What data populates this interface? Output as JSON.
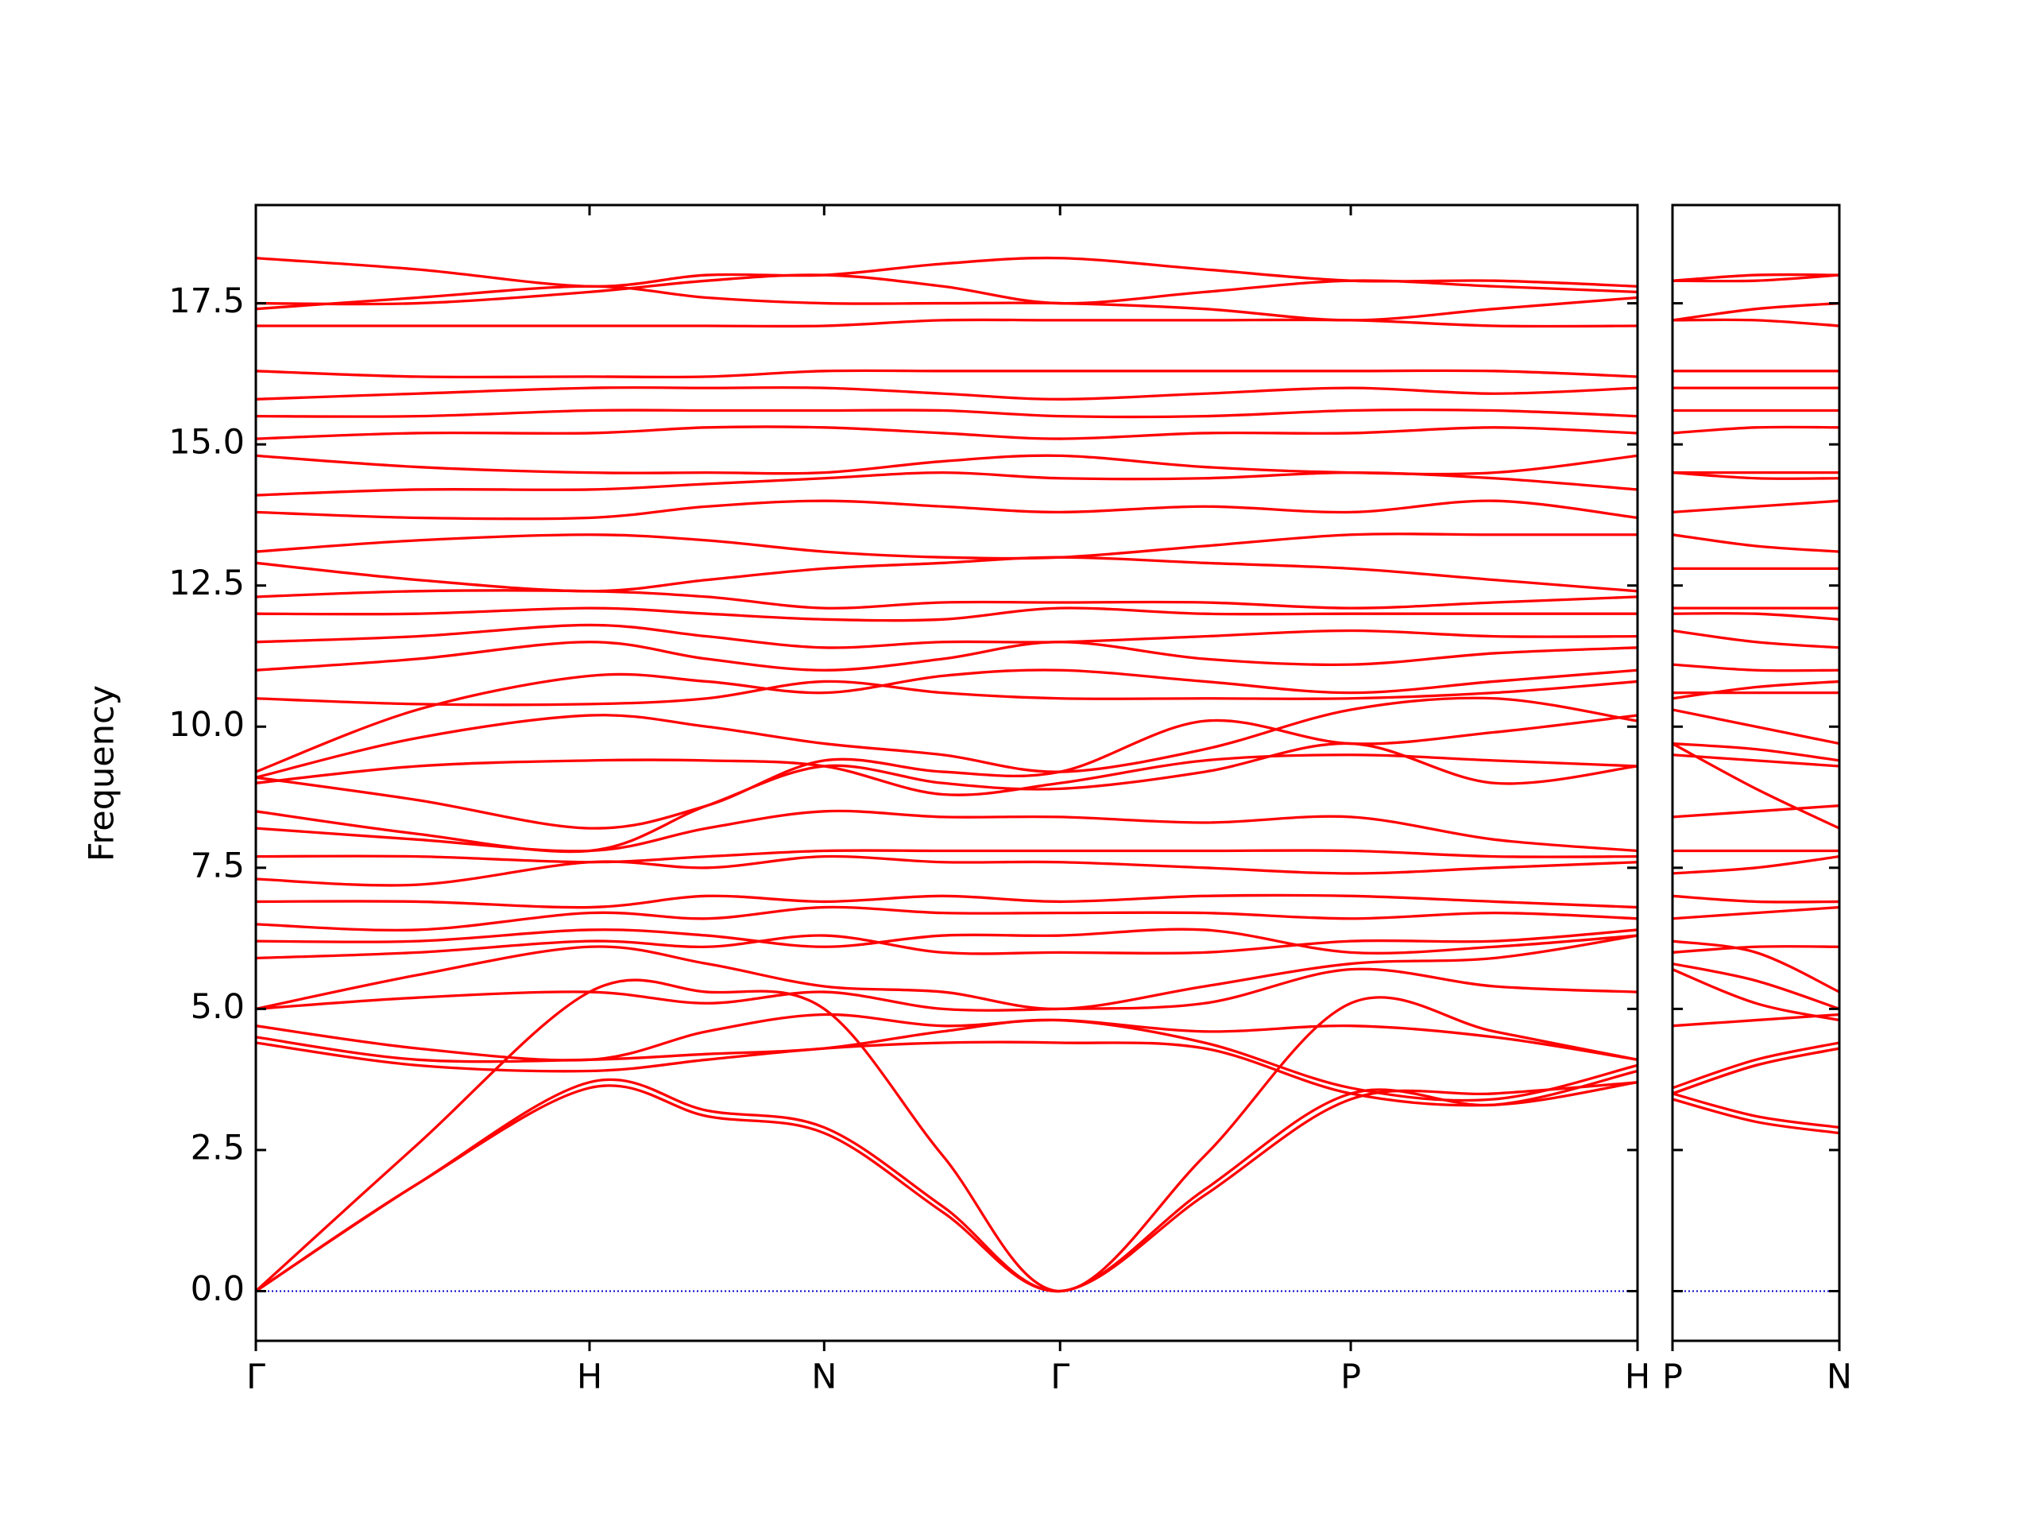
{
  "chart_data": [
    {
      "type": "line",
      "ylabel": "Frequency",
      "color": "#ff0000",
      "x": [
        0,
        0.124,
        0.256,
        0.346,
        0.436,
        0.527,
        0.617,
        0.728,
        0.84,
        0.95,
        1.06
      ],
      "xlim": [
        0,
        1.06
      ],
      "xticks": [
        {
          "value": 0,
          "label": "Γ"
        },
        {
          "value": 0.256,
          "label": "H"
        },
        {
          "value": 0.436,
          "label": "N"
        },
        {
          "value": 0.617,
          "label": "Γ"
        },
        {
          "value": 0.84,
          "label": "P"
        },
        {
          "value": 1.06,
          "label": "H"
        }
      ],
      "ylim": [
        -0.88,
        19.24
      ],
      "yticks": [
        {
          "value": 0,
          "label": "0.0"
        },
        2.5,
        {
          "value": 5,
          "label": "5.0"
        },
        7.5,
        {
          "value": 10,
          "label": "10.0"
        },
        12.5,
        {
          "value": 15,
          "label": "15.0"
        },
        17.5
      ],
      "hline": 0,
      "hline_color": "#0000cc",
      "series": [
        {
          "values": [
            0,
            1.9,
            3.6,
            3.1,
            2.8,
            1.4,
            0,
            1.7,
            3.4,
            3.5,
            3.7
          ]
        },
        {
          "values": [
            0,
            1.9,
            3.7,
            3.2,
            2.9,
            1.5,
            0,
            1.8,
            3.5,
            3.3,
            3.9
          ]
        },
        {
          "values": [
            0,
            2.6,
            5.3,
            5.3,
            5.0,
            2.4,
            0,
            2.4,
            5.1,
            4.6,
            4.1
          ]
        },
        {
          "values": [
            4.4,
            4.0,
            3.9,
            4.1,
            4.3,
            4.4,
            4.4,
            4.3,
            3.5,
            3.3,
            3.7
          ]
        },
        {
          "values": [
            4.5,
            4.1,
            4.1,
            4.2,
            4.3,
            4.6,
            4.8,
            4.4,
            3.6,
            3.4,
            4.0
          ]
        },
        {
          "values": [
            4.7,
            4.3,
            4.1,
            4.6,
            4.9,
            4.7,
            4.8,
            4.6,
            4.7,
            4.5,
            4.1
          ]
        },
        {
          "values": [
            5.0,
            5.2,
            5.3,
            5.1,
            5.3,
            5.0,
            5.0,
            5.1,
            5.7,
            5.4,
            5.3
          ]
        },
        {
          "values": [
            5.0,
            5.6,
            6.1,
            5.8,
            5.4,
            5.3,
            5.0,
            5.4,
            5.8,
            5.9,
            6.3
          ]
        },
        {
          "values": [
            5.9,
            6.0,
            6.2,
            6.1,
            6.3,
            6.0,
            6.0,
            6.0,
            6.2,
            6.2,
            6.4
          ]
        },
        {
          "values": [
            6.2,
            6.2,
            6.4,
            6.3,
            6.1,
            6.3,
            6.3,
            6.4,
            6.0,
            6.1,
            6.3
          ]
        },
        {
          "values": [
            6.5,
            6.4,
            6.7,
            6.6,
            6.8,
            6.7,
            6.7,
            6.7,
            6.6,
            6.7,
            6.6
          ]
        },
        {
          "values": [
            6.9,
            6.9,
            6.8,
            7.0,
            6.9,
            7.0,
            6.9,
            7.0,
            7.0,
            6.9,
            6.8
          ]
        },
        {
          "values": [
            7.3,
            7.2,
            7.6,
            7.5,
            7.7,
            7.6,
            7.6,
            7.5,
            7.4,
            7.5,
            7.6
          ]
        },
        {
          "values": [
            7.7,
            7.7,
            7.6,
            7.7,
            7.8,
            7.8,
            7.8,
            7.8,
            7.8,
            7.7,
            7.7
          ]
        },
        {
          "values": [
            8.2,
            8.0,
            7.8,
            8.2,
            8.5,
            8.4,
            8.4,
            8.3,
            8.4,
            8.0,
            7.8
          ]
        },
        {
          "values": [
            8.5,
            8.1,
            7.8,
            8.6,
            9.3,
            9.0,
            8.9,
            9.2,
            9.7,
            9.0,
            9.3
          ]
        },
        {
          "values": [
            9.0,
            9.3,
            9.4,
            9.4,
            9.3,
            8.8,
            9.0,
            9.4,
            9.5,
            9.4,
            9.3
          ]
        },
        {
          "values": [
            9.1,
            8.7,
            8.2,
            8.6,
            9.4,
            9.2,
            9.2,
            10.1,
            9.7,
            9.9,
            10.2
          ]
        },
        {
          "values": [
            9.1,
            9.8,
            10.2,
            10.0,
            9.7,
            9.5,
            9.2,
            9.6,
            10.3,
            10.5,
            10.1
          ]
        },
        {
          "values": [
            9.2,
            10.3,
            10.9,
            10.8,
            10.6,
            10.9,
            11.0,
            10.8,
            10.6,
            10.8,
            11.0
          ]
        },
        {
          "values": [
            10.5,
            10.4,
            10.4,
            10.5,
            10.8,
            10.6,
            10.5,
            10.5,
            10.5,
            10.6,
            10.8
          ]
        },
        {
          "values": [
            11.0,
            11.2,
            11.5,
            11.2,
            11.0,
            11.2,
            11.5,
            11.2,
            11.1,
            11.3,
            11.4
          ]
        },
        {
          "values": [
            11.5,
            11.6,
            11.8,
            11.6,
            11.4,
            11.5,
            11.5,
            11.6,
            11.7,
            11.6,
            11.6
          ]
        },
        {
          "values": [
            12.0,
            12.0,
            12.1,
            12.0,
            11.9,
            11.9,
            12.1,
            12.0,
            12.0,
            12.0,
            12.0
          ]
        },
        {
          "values": [
            12.3,
            12.4,
            12.4,
            12.3,
            12.1,
            12.2,
            12.2,
            12.2,
            12.1,
            12.2,
            12.3
          ]
        },
        {
          "values": [
            12.9,
            12.6,
            12.4,
            12.6,
            12.8,
            12.9,
            13.0,
            12.9,
            12.8,
            12.6,
            12.4
          ]
        },
        {
          "values": [
            13.1,
            13.3,
            13.4,
            13.3,
            13.1,
            13.0,
            13.0,
            13.2,
            13.4,
            13.4,
            13.4
          ]
        },
        {
          "values": [
            13.8,
            13.7,
            13.7,
            13.9,
            14.0,
            13.9,
            13.8,
            13.9,
            13.8,
            14.0,
            13.7
          ]
        },
        {
          "values": [
            14.1,
            14.2,
            14.2,
            14.3,
            14.4,
            14.5,
            14.4,
            14.4,
            14.5,
            14.4,
            14.2
          ]
        },
        {
          "values": [
            14.8,
            14.6,
            14.5,
            14.5,
            14.5,
            14.7,
            14.8,
            14.6,
            14.5,
            14.5,
            14.8
          ]
        },
        {
          "values": [
            15.1,
            15.2,
            15.2,
            15.3,
            15.3,
            15.2,
            15.1,
            15.2,
            15.2,
            15.3,
            15.2
          ]
        },
        {
          "values": [
            15.5,
            15.5,
            15.6,
            15.6,
            15.6,
            15.6,
            15.5,
            15.5,
            15.6,
            15.6,
            15.5
          ]
        },
        {
          "values": [
            15.8,
            15.9,
            16.0,
            16.0,
            16.0,
            15.9,
            15.8,
            15.9,
            16.0,
            15.9,
            16.0
          ]
        },
        {
          "values": [
            16.3,
            16.2,
            16.2,
            16.2,
            16.3,
            16.3,
            16.3,
            16.3,
            16.3,
            16.3,
            16.2
          ]
        },
        {
          "values": [
            17.1,
            17.1,
            17.1,
            17.1,
            17.1,
            17.2,
            17.2,
            17.2,
            17.2,
            17.1,
            17.1
          ]
        },
        {
          "values": [
            17.4,
            17.6,
            17.8,
            17.6,
            17.5,
            17.5,
            17.5,
            17.4,
            17.2,
            17.4,
            17.6
          ]
        },
        {
          "values": [
            17.5,
            17.5,
            17.7,
            17.9,
            18.0,
            17.8,
            17.5,
            17.7,
            17.9,
            17.8,
            17.7
          ]
        },
        {
          "values": [
            18.3,
            18.1,
            17.8,
            18.0,
            18.0,
            18.2,
            18.3,
            18.1,
            17.9,
            17.9,
            17.8
          ]
        }
      ]
    },
    {
      "type": "line",
      "color": "#ff0000",
      "x": [
        0,
        0.064,
        0.128
      ],
      "xlim": [
        0,
        0.128
      ],
      "xticks": [
        {
          "value": 0,
          "label": "P"
        },
        {
          "value": 0.128,
          "label": "N"
        }
      ],
      "ylim": [
        -0.88,
        19.24
      ],
      "yticks": [
        0,
        2.5,
        5,
        7.5,
        10,
        12.5,
        15,
        17.5
      ],
      "hline": 0,
      "hline_color": "#0000cc",
      "series": [
        {
          "values": [
            3.4,
            3.0,
            2.8
          ]
        },
        {
          "values": [
            3.5,
            3.1,
            2.9
          ]
        },
        {
          "values": [
            3.5,
            4.0,
            4.3
          ]
        },
        {
          "values": [
            3.5,
            4.0,
            4.3
          ]
        },
        {
          "values": [
            3.6,
            4.1,
            4.4
          ]
        },
        {
          "values": [
            4.7,
            4.8,
            4.9
          ]
        },
        {
          "values": [
            5.7,
            5.1,
            4.8
          ]
        },
        {
          "values": [
            5.8,
            5.5,
            5.0
          ]
        },
        {
          "values": [
            6.2,
            6.0,
            5.3
          ]
        },
        {
          "values": [
            6.0,
            6.1,
            6.1
          ]
        },
        {
          "values": [
            6.6,
            6.7,
            6.8
          ]
        },
        {
          "values": [
            7.0,
            6.9,
            6.9
          ]
        },
        {
          "values": [
            7.4,
            7.5,
            7.7
          ]
        },
        {
          "values": [
            7.8,
            7.8,
            7.8
          ]
        },
        {
          "values": [
            8.4,
            8.5,
            8.6
          ]
        },
        {
          "values": [
            9.7,
            8.9,
            8.2
          ]
        },
        {
          "values": [
            9.5,
            9.4,
            9.3
          ]
        },
        {
          "values": [
            9.7,
            9.6,
            9.4
          ]
        },
        {
          "values": [
            10.3,
            10.0,
            9.7
          ]
        },
        {
          "values": [
            10.6,
            10.6,
            10.6
          ]
        },
        {
          "values": [
            10.5,
            10.7,
            10.8
          ]
        },
        {
          "values": [
            11.1,
            11.0,
            11.0
          ]
        },
        {
          "values": [
            11.7,
            11.5,
            11.4
          ]
        },
        {
          "values": [
            12.0,
            12.0,
            11.9
          ]
        },
        {
          "values": [
            12.1,
            12.1,
            12.1
          ]
        },
        {
          "values": [
            12.8,
            12.8,
            12.8
          ]
        },
        {
          "values": [
            13.4,
            13.2,
            13.1
          ]
        },
        {
          "values": [
            13.8,
            13.9,
            14.0
          ]
        },
        {
          "values": [
            14.5,
            14.4,
            14.4
          ]
        },
        {
          "values": [
            14.5,
            14.5,
            14.5
          ]
        },
        {
          "values": [
            15.2,
            15.3,
            15.3
          ]
        },
        {
          "values": [
            15.6,
            15.6,
            15.6
          ]
        },
        {
          "values": [
            16.0,
            16.0,
            16.0
          ]
        },
        {
          "values": [
            16.3,
            16.3,
            16.3
          ]
        },
        {
          "values": [
            17.2,
            17.2,
            17.1
          ]
        },
        {
          "values": [
            17.2,
            17.4,
            17.5
          ]
        },
        {
          "values": [
            17.9,
            17.9,
            18.0
          ]
        },
        {
          "values": [
            17.9,
            18.0,
            18.0
          ]
        }
      ]
    }
  ]
}
